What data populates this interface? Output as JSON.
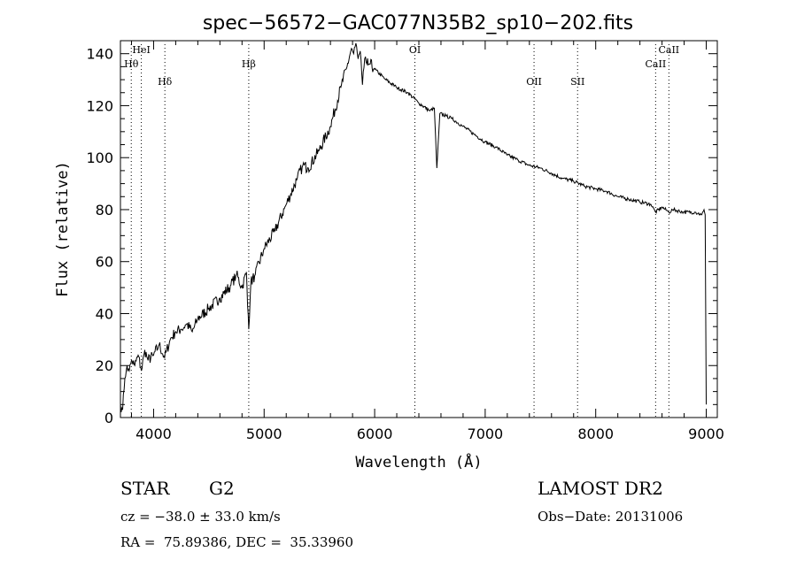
{
  "chart_data": {
    "type": "line",
    "title": "spec−56572−GAC077N35B2_sp10−202.fits",
    "xlabel": "Wavelength (Å)",
    "ylabel": "Flux (relative)",
    "xlim": [
      3700,
      9100
    ],
    "ylim": [
      0,
      145
    ],
    "x_ticks": [
      4000,
      5000,
      6000,
      7000,
      8000,
      9000
    ],
    "y_ticks": [
      0,
      20,
      40,
      60,
      80,
      100,
      120,
      140
    ],
    "grid": false,
    "series": [
      {
        "x": [
          3700,
          3720,
          3740,
          3760,
          3780,
          3800,
          3830,
          3860,
          3890,
          3920,
          3950,
          4000,
          4050,
          4100,
          4150,
          4200,
          4250,
          4300,
          4350,
          4400,
          4500,
          4600,
          4700,
          4750,
          4800,
          4840,
          4861,
          4880,
          4920,
          5000,
          5100,
          5200,
          5300,
          5350,
          5400,
          5500,
          5600,
          5700,
          5750,
          5790,
          5810,
          5830,
          5850,
          5870,
          5890,
          5910,
          5930,
          5960,
          6000,
          6100,
          6200,
          6300,
          6400,
          6500,
          6540,
          6563,
          6590,
          6650,
          6700,
          6800,
          6900,
          7000,
          7100,
          7200,
          7300,
          7400,
          7500,
          7600,
          7700,
          7800,
          7900,
          8000,
          8100,
          8200,
          8300,
          8400,
          8500,
          8542,
          8600,
          8662,
          8700,
          8800,
          8900,
          8960,
          8980,
          8990,
          9000
        ],
        "y": [
          5,
          3,
          15,
          20,
          18,
          22,
          20,
          24,
          18,
          26,
          22,
          24,
          28,
          23,
          30,
          33,
          34,
          36,
          33,
          38,
          42,
          46,
          51,
          55,
          50,
          56,
          34,
          52,
          55,
          65,
          72,
          82,
          92,
          97,
          96,
          103,
          112,
          128,
          135,
          142,
          140,
          144,
          138,
          141,
          128,
          138,
          136,
          136,
          134,
          130,
          127,
          125,
          121,
          118,
          119,
          96,
          117,
          116,
          115,
          112,
          109,
          106,
          104,
          101,
          99,
          97,
          96,
          94,
          92,
          91,
          89,
          88,
          87,
          85,
          84,
          83,
          82,
          79,
          81,
          79,
          80,
          79,
          79,
          78,
          80,
          78,
          5
        ]
      }
    ],
    "lines": [
      {
        "label": "HeI",
        "x": 3889,
        "row": 0
      },
      {
        "label": "Hθ",
        "x": 3798,
        "row": 1
      },
      {
        "label": "Hδ",
        "x": 4102,
        "row": 2
      },
      {
        "label": "Hβ",
        "x": 4861,
        "row": 1
      },
      {
        "label": "OI",
        "x": 6364,
        "row": 0
      },
      {
        "label": "OII",
        "x": 7442,
        "row": 2
      },
      {
        "label": "SII",
        "x": 7836,
        "row": 2
      },
      {
        "label": "CaII",
        "x": 8542,
        "row": 1
      },
      {
        "label": "CaII",
        "x": 8662,
        "row": 0
      }
    ]
  },
  "info": {
    "object_type": "STAR",
    "subclass": "G2",
    "survey": "LAMOST DR2",
    "cz": "cz = −38.0 ± 33.0 km/s",
    "obs_date": "Obs−Date: 20131006",
    "coords": "RA =  75.89386, DEC =  35.33960"
  }
}
